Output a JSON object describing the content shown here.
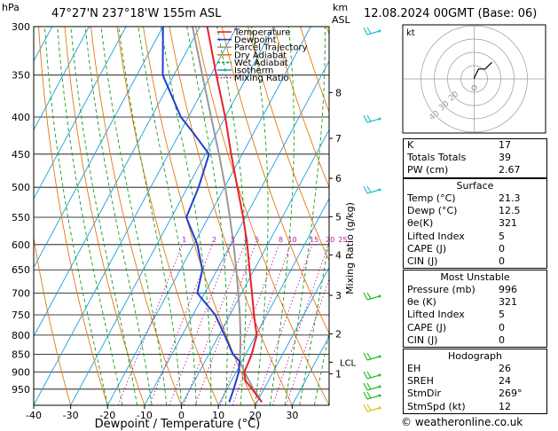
{
  "header": {
    "hpa_label": "hPa",
    "location": "47°27'N  237°18'W  155m  ASL",
    "km_label": "km",
    "asl_label": "ASL",
    "date": "12.08.2024  00GMT  (Base: 06)"
  },
  "legend": [
    {
      "label": "Temperature",
      "color": "#e8202a"
    },
    {
      "label": "Dewpoint",
      "color": "#1f3fd0"
    },
    {
      "label": "Parcel Trajectory",
      "color": "#999999"
    },
    {
      "label": "Dry Adiabat",
      "color": "#e07a10"
    },
    {
      "label": "Wet Adiabat",
      "color": "#1a9a1a"
    },
    {
      "label": "Isotherm",
      "color": "#1aa0e0"
    },
    {
      "label": "Mixing Ratio",
      "color": "#c01aa0"
    }
  ],
  "chart_data": {
    "type": "line",
    "xlabel": "Dewpoint / Temperature (°C)",
    "y_left_label": "hPa",
    "y_right_label": "Mixing Ratio (g/kg)",
    "x_ticks": [
      -40,
      -30,
      -20,
      -10,
      0,
      10,
      20,
      30
    ],
    "pressure_levels": [
      300,
      350,
      400,
      450,
      500,
      550,
      600,
      650,
      700,
      750,
      800,
      850,
      900,
      950
    ],
    "xlim": [
      -40,
      40
    ],
    "ylim": [
      1000,
      300
    ],
    "skew_deg_per_log": 100,
    "km_ticks": [
      {
        "label": "8",
        "p": 370
      },
      {
        "label": "7",
        "p": 428
      },
      {
        "label": "6",
        "p": 486
      },
      {
        "label": "5",
        "p": 549
      },
      {
        "label": "4",
        "p": 620
      },
      {
        "label": "3",
        "p": 705
      },
      {
        "label": "2",
        "p": 797
      },
      {
        "label": "1",
        "p": 905
      }
    ],
    "lcl": {
      "label": "LCL",
      "p": 872
    },
    "mixing_ratio_labels": [
      "1",
      "2",
      "3",
      "4",
      "5",
      "8",
      "10",
      "15",
      "20",
      "25"
    ],
    "mixing_ratio_values": [
      1,
      2,
      3,
      4,
      5,
      8,
      10,
      15,
      20,
      25
    ],
    "series": [
      {
        "name": "Temperature",
        "p": [
          990,
          950,
          925,
          900,
          870,
          850,
          800,
          750,
          700,
          650,
          600,
          550,
          500,
          450,
          400,
          350,
          300
        ],
        "values": [
          21.3,
          16.8,
          13.8,
          12.2,
          11.9,
          11.6,
          10.2,
          6.5,
          2.8,
          -1.2,
          -5.5,
          -10.6,
          -16.5,
          -23,
          -30,
          -38.5,
          -48
        ]
      },
      {
        "name": "Dewpoint",
        "p": [
          990,
          950,
          900,
          870,
          850,
          800,
          750,
          700,
          650,
          600,
          550,
          500,
          450,
          420,
          400,
          350,
          300
        ],
        "values": [
          12.5,
          11.8,
          10.7,
          9.4,
          6.5,
          1.5,
          -4,
          -12,
          -14,
          -19,
          -26,
          -27,
          -29,
          -36.5,
          -42,
          -53,
          -60
        ]
      },
      {
        "name": "Parcel Trajectory",
        "p": [
          990,
          950,
          900,
          872,
          850,
          800,
          750,
          700,
          650,
          600,
          550,
          500,
          450,
          400,
          350,
          300
        ],
        "values": [
          21.3,
          17.2,
          12.3,
          9.6,
          8.5,
          5.8,
          2.7,
          -0.9,
          -4.8,
          -9.2,
          -14.2,
          -19.8,
          -26.3,
          -33.8,
          -42.3,
          -52
        ]
      }
    ]
  },
  "hodograph": {
    "label": "kt",
    "ring_labels": [
      "40",
      "30",
      "20"
    ],
    "points": [
      [
        0,
        0
      ],
      [
        0.5,
        2
      ],
      [
        4,
        9
      ],
      [
        10,
        9
      ],
      [
        16,
        15
      ]
    ]
  },
  "indices": {
    "rows": [
      {
        "label": "K",
        "value": "17"
      },
      {
        "label": "Totals Totals",
        "value": "39"
      },
      {
        "label": "PW (cm)",
        "value": "2.67"
      }
    ]
  },
  "surface": {
    "title": "Surface",
    "rows": [
      {
        "label": "Temp (°C)",
        "value": "21.3"
      },
      {
        "label": "Dewp (°C)",
        "value": "12.5"
      },
      {
        "label": "θe(K)",
        "value": "321"
      },
      {
        "label": "Lifted Index",
        "value": "5"
      },
      {
        "label": "CAPE (J)",
        "value": "0"
      },
      {
        "label": "CIN (J)",
        "value": "0"
      }
    ]
  },
  "most_unstable": {
    "title": "Most Unstable",
    "rows": [
      {
        "label": "Pressure (mb)",
        "value": "996"
      },
      {
        "label": "θe (K)",
        "value": "321"
      },
      {
        "label": "Lifted Index",
        "value": "5"
      },
      {
        "label": "CAPE (J)",
        "value": "0"
      },
      {
        "label": "CIN (J)",
        "value": "0"
      }
    ]
  },
  "hodograph_table": {
    "title": "Hodograph",
    "rows": [
      {
        "label": "EH",
        "value": "26"
      },
      {
        "label": "SREH",
        "value": "24"
      },
      {
        "label": "StmDir",
        "value": "269°"
      },
      {
        "label": "StmSpd (kt)",
        "value": "12"
      }
    ]
  },
  "footer": "© weatheronline.co.uk"
}
